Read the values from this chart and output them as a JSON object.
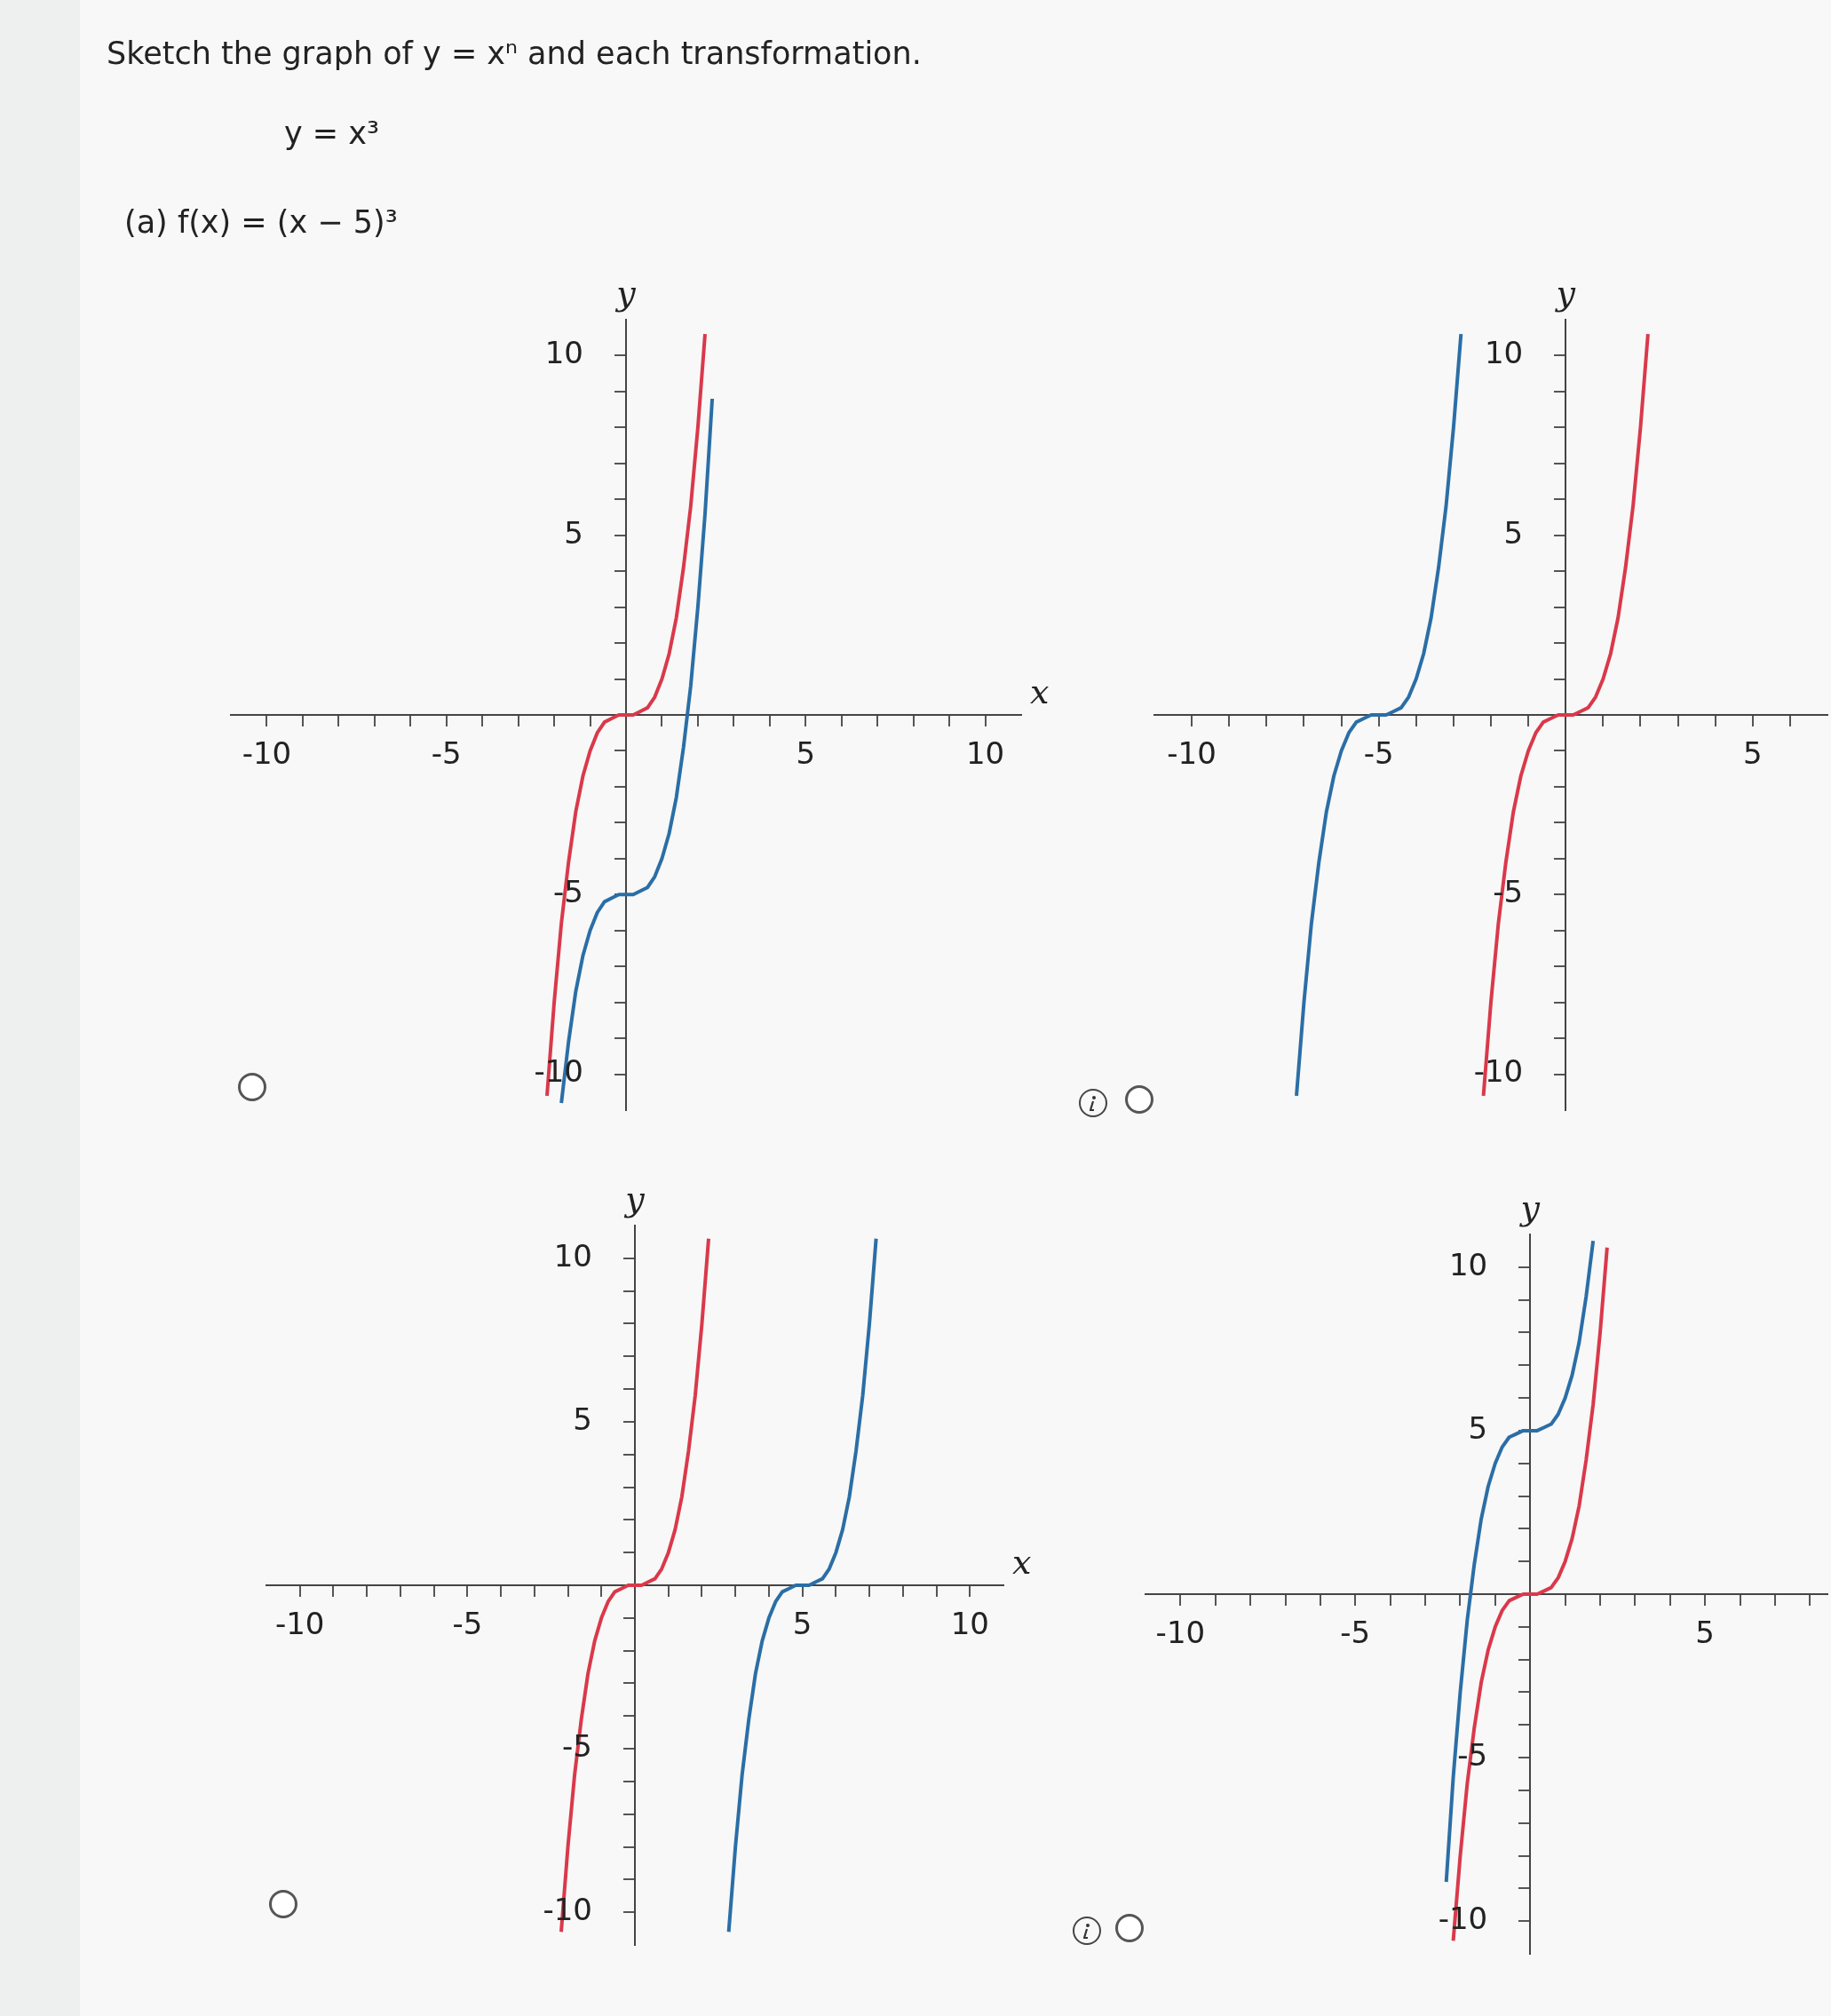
{
  "chart_data": [
    {
      "type": "line",
      "title": "Sketch the graph of y = xⁿ and each transformation.",
      "subtitle": "y = x³",
      "annotations": [
        "(a) f(x) = (x − 5)³"
      ],
      "xlabel": "x",
      "ylabel": "y",
      "xlim": [
        -11,
        11
      ],
      "ylim": [
        -11,
        11
      ],
      "xticks": [
        -10,
        {
          "value": -9,
          "label": null
        },
        {
          "value": -8,
          "label": null
        },
        {
          "value": -7,
          "label": null
        },
        {
          "value": -6,
          "label": null
        },
        -5,
        {
          "value": -4,
          "label": null
        },
        {
          "value": -3,
          "label": null
        },
        {
          "value": -2,
          "label": null
        },
        {
          "value": -1,
          "label": null
        },
        {
          "value": 1,
          "label": null
        },
        {
          "value": 2,
          "label": null
        },
        {
          "value": 3,
          "label": null
        },
        {
          "value": 4,
          "label": null
        },
        5,
        {
          "value": 6,
          "label": null
        },
        {
          "value": 7,
          "label": null
        },
        {
          "value": 8,
          "label": null
        },
        {
          "value": 9,
          "label": null
        },
        10
      ],
      "yticks": [
        -10,
        {
          "value": -9,
          "label": null
        },
        {
          "value": -8,
          "label": null
        },
        {
          "value": -7,
          "label": null
        },
        {
          "value": -6,
          "label": null
        },
        -5,
        {
          "value": -4,
          "label": null
        },
        {
          "value": -3,
          "label": null
        },
        {
          "value": -2,
          "label": null
        },
        {
          "value": -1,
          "label": null
        },
        {
          "value": 1,
          "label": null
        },
        {
          "value": 2,
          "label": null
        },
        {
          "value": 3,
          "label": null
        },
        {
          "value": 4,
          "label": null
        },
        5,
        {
          "value": 6,
          "label": null
        },
        {
          "value": 7,
          "label": null
        },
        {
          "value": 8,
          "label": null
        },
        {
          "value": 9,
          "label": null
        },
        10
      ],
      "grid": false,
      "legend": false,
      "series": [
        {
          "color": "#d9394b",
          "x": [
            -2.2,
            -2,
            -1.8,
            -1.6,
            -1.4,
            -1.2,
            -1,
            -0.8,
            -0.6,
            -0.4,
            -0.2,
            0,
            0.2,
            0.4,
            0.6,
            0.8,
            1,
            1.2,
            1.4,
            1.6,
            1.8,
            2,
            2.2
          ],
          "values": [
            -10.6,
            -8,
            -5.8,
            -4.1,
            -2.7,
            -1.7,
            -1,
            -0.5,
            -0.2,
            -0.1,
            0,
            0,
            0,
            0.1,
            0.2,
            0.5,
            1,
            1.7,
            2.7,
            4.1,
            5.8,
            8,
            10.6
          ]
        },
        {
          "color": "#2b6ea6",
          "x": [
            -1.8,
            -1.6,
            -1.4,
            -1.2,
            -1,
            -0.8,
            -0.6,
            -0.4,
            -0.2,
            0,
            0.2,
            0.4,
            0.6,
            0.8,
            1,
            1.2,
            1.4,
            1.6,
            1.8,
            2,
            2.2,
            2.4
          ],
          "values": [
            -10.8,
            -9.1,
            -7.7,
            -6.7,
            -6,
            -5.5,
            -5.2,
            -5.1,
            -5,
            -5,
            -5,
            -4.9,
            -4.8,
            -4.5,
            -4,
            -3.3,
            -2.3,
            -0.9,
            0.8,
            3,
            5.6,
            8.8
          ]
        }
      ]
    },
    {
      "type": "line",
      "ylabel": "y",
      "xlim": [
        -11,
        7
      ],
      "ylim": [
        -11,
        11
      ],
      "xticks": [
        -10,
        {
          "value": -9,
          "label": null
        },
        {
          "value": -8,
          "label": null
        },
        {
          "value": -7,
          "label": null
        },
        {
          "value": -6,
          "label": null
        },
        -5,
        {
          "value": -4,
          "label": null
        },
        {
          "value": -3,
          "label": null
        },
        {
          "value": -2,
          "label": null
        },
        {
          "value": -1,
          "label": null
        },
        {
          "value": 1,
          "label": null
        },
        {
          "value": 2,
          "label": null
        },
        {
          "value": 3,
          "label": null
        },
        {
          "value": 4,
          "label": null
        },
        5,
        {
          "value": 6,
          "label": null
        }
      ],
      "yticks": [
        -10,
        {
          "value": -9,
          "label": null
        },
        {
          "value": -8,
          "label": null
        },
        {
          "value": -7,
          "label": null
        },
        {
          "value": -6,
          "label": null
        },
        -5,
        {
          "value": -4,
          "label": null
        },
        {
          "value": -3,
          "label": null
        },
        {
          "value": -2,
          "label": null
        },
        {
          "value": -1,
          "label": null
        },
        {
          "value": 1,
          "label": null
        },
        {
          "value": 2,
          "label": null
        },
        {
          "value": 3,
          "label": null
        },
        {
          "value": 4,
          "label": null
        },
        5,
        {
          "value": 6,
          "label": null
        },
        {
          "value": 7,
          "label": null
        },
        {
          "value": 8,
          "label": null
        },
        {
          "value": 9,
          "label": null
        },
        10
      ],
      "grid": false,
      "legend": false,
      "series": [
        {
          "color": "#d9394b",
          "x": [
            -2.2,
            -2,
            -1.8,
            -1.6,
            -1.4,
            -1.2,
            -1,
            -0.8,
            -0.6,
            -0.4,
            -0.2,
            0,
            0.2,
            0.4,
            0.6,
            0.8,
            1,
            1.2,
            1.4,
            1.6,
            1.8,
            2,
            2.2
          ],
          "values": [
            -10.6,
            -8,
            -5.8,
            -4.1,
            -2.7,
            -1.7,
            -1,
            -0.5,
            -0.2,
            -0.1,
            0,
            0,
            0,
            0.1,
            0.2,
            0.5,
            1,
            1.7,
            2.7,
            4.1,
            5.8,
            8,
            10.6
          ]
        },
        {
          "color": "#2b6ea6",
          "x": [
            -7.2,
            -7,
            -6.8,
            -6.6,
            -6.4,
            -6.2,
            -6,
            -5.8,
            -5.6,
            -5.4,
            -5.2,
            -5,
            -4.8,
            -4.6,
            -4.4,
            -4.2,
            -4,
            -3.8,
            -3.6,
            -3.4,
            -3.2,
            -3,
            -2.8
          ],
          "values": [
            -10.6,
            -8,
            -5.8,
            -4.1,
            -2.7,
            -1.7,
            -1,
            -0.5,
            -0.2,
            -0.1,
            0,
            0,
            0,
            0.1,
            0.2,
            0.5,
            1,
            1.7,
            2.7,
            4.1,
            5.8,
            8,
            10.6
          ]
        }
      ]
    },
    {
      "type": "line",
      "xlabel": "x",
      "ylabel": "y",
      "xlim": [
        -11,
        11
      ],
      "ylim": [
        -11,
        11
      ],
      "xticks": [
        -10,
        {
          "value": -9,
          "label": null
        },
        {
          "value": -8,
          "label": null
        },
        {
          "value": -7,
          "label": null
        },
        {
          "value": -6,
          "label": null
        },
        -5,
        {
          "value": -4,
          "label": null
        },
        {
          "value": -3,
          "label": null
        },
        {
          "value": -2,
          "label": null
        },
        {
          "value": -1,
          "label": null
        },
        {
          "value": 1,
          "label": null
        },
        {
          "value": 2,
          "label": null
        },
        {
          "value": 3,
          "label": null
        },
        {
          "value": 4,
          "label": null
        },
        5,
        {
          "value": 6,
          "label": null
        },
        {
          "value": 7,
          "label": null
        },
        {
          "value": 8,
          "label": null
        },
        {
          "value": 9,
          "label": null
        },
        10
      ],
      "yticks": [
        -10,
        {
          "value": -9,
          "label": null
        },
        {
          "value": -8,
          "label": null
        },
        {
          "value": -7,
          "label": null
        },
        {
          "value": -6,
          "label": null
        },
        -5,
        {
          "value": -4,
          "label": null
        },
        {
          "value": -3,
          "label": null
        },
        {
          "value": -2,
          "label": null
        },
        {
          "value": -1,
          "label": null
        },
        {
          "value": 1,
          "label": null
        },
        {
          "value": 2,
          "label": null
        },
        {
          "value": 3,
          "label": null
        },
        {
          "value": 4,
          "label": null
        },
        5,
        {
          "value": 6,
          "label": null
        },
        {
          "value": 7,
          "label": null
        },
        {
          "value": 8,
          "label": null
        },
        {
          "value": 9,
          "label": null
        },
        10
      ],
      "grid": false,
      "legend": false,
      "series": [
        {
          "color": "#d9394b",
          "x": [
            -2.2,
            -2,
            -1.8,
            -1.6,
            -1.4,
            -1.2,
            -1,
            -0.8,
            -0.6,
            -0.4,
            -0.2,
            0,
            0.2,
            0.4,
            0.6,
            0.8,
            1,
            1.2,
            1.4,
            1.6,
            1.8,
            2,
            2.2
          ],
          "values": [
            -10.6,
            -8,
            -5.8,
            -4.1,
            -2.7,
            -1.7,
            -1,
            -0.5,
            -0.2,
            -0.1,
            0,
            0,
            0,
            0.1,
            0.2,
            0.5,
            1,
            1.7,
            2.7,
            4.1,
            5.8,
            8,
            10.6
          ]
        },
        {
          "color": "#2b6ea6",
          "x": [
            2.8,
            3,
            3.2,
            3.4,
            3.6,
            3.8,
            4,
            4.2,
            4.4,
            4.6,
            4.8,
            5,
            5.2,
            5.4,
            5.6,
            5.8,
            6,
            6.2,
            6.4,
            6.6,
            6.8,
            7,
            7.2
          ],
          "values": [
            -10.6,
            -8,
            -5.8,
            -4.1,
            -2.7,
            -1.7,
            -1,
            -0.5,
            -0.2,
            -0.1,
            0,
            0,
            0,
            0.1,
            0.2,
            0.5,
            1,
            1.7,
            2.7,
            4.1,
            5.8,
            8,
            10.6
          ]
        }
      ]
    },
    {
      "type": "line",
      "ylabel": "y",
      "xlim": [
        -11,
        8.5
      ],
      "ylim": [
        -11,
        11
      ],
      "xticks": [
        -10,
        {
          "value": -9,
          "label": null
        },
        {
          "value": -8,
          "label": null
        },
        {
          "value": -7,
          "label": null
        },
        {
          "value": -6,
          "label": null
        },
        -5,
        {
          "value": -4,
          "label": null
        },
        {
          "value": -3,
          "label": null
        },
        {
          "value": -2,
          "label": null
        },
        {
          "value": -1,
          "label": null
        },
        {
          "value": 1,
          "label": null
        },
        {
          "value": 2,
          "label": null
        },
        {
          "value": 3,
          "label": null
        },
        {
          "value": 4,
          "label": null
        },
        5,
        {
          "value": 6,
          "label": null
        },
        {
          "value": 7,
          "label": null
        },
        {
          "value": 8,
          "label": null
        }
      ],
      "yticks": [
        -10,
        {
          "value": -9,
          "label": null
        },
        {
          "value": -8,
          "label": null
        },
        {
          "value": -7,
          "label": null
        },
        {
          "value": -6,
          "label": null
        },
        -5,
        {
          "value": -4,
          "label": null
        },
        {
          "value": -3,
          "label": null
        },
        {
          "value": -2,
          "label": null
        },
        {
          "value": -1,
          "label": null
        },
        {
          "value": 1,
          "label": null
        },
        {
          "value": 2,
          "label": null
        },
        {
          "value": 3,
          "label": null
        },
        {
          "value": 4,
          "label": null
        },
        5,
        {
          "value": 6,
          "label": null
        },
        {
          "value": 7,
          "label": null
        },
        {
          "value": 8,
          "label": null
        },
        {
          "value": 9,
          "label": null
        },
        10
      ],
      "grid": false,
      "legend": false,
      "series": [
        {
          "color": "#d9394b",
          "x": [
            -2.2,
            -2,
            -1.8,
            -1.6,
            -1.4,
            -1.2,
            -1,
            -0.8,
            -0.6,
            -0.4,
            -0.2,
            0,
            0.2,
            0.4,
            0.6,
            0.8,
            1,
            1.2,
            1.4,
            1.6,
            1.8,
            2,
            2.2
          ],
          "values": [
            -10.6,
            -8,
            -5.8,
            -4.1,
            -2.7,
            -1.7,
            -1,
            -0.5,
            -0.2,
            -0.1,
            0,
            0,
            0,
            0.1,
            0.2,
            0.5,
            1,
            1.7,
            2.7,
            4.1,
            5.8,
            8,
            10.6
          ]
        },
        {
          "color": "#2b6ea6",
          "x": [
            -2.4,
            -2.2,
            -2,
            -1.8,
            -1.6,
            -1.4,
            -1.2,
            -1,
            -0.8,
            -0.6,
            -0.4,
            -0.2,
            0,
            0.2,
            0.4,
            0.6,
            0.8,
            1,
            1.2,
            1.4,
            1.6,
            1.8
          ],
          "values": [
            -8.8,
            -5.6,
            -3,
            -0.8,
            0.9,
            2.3,
            3.3,
            4,
            4.5,
            4.8,
            4.9,
            5,
            5,
            5,
            5.1,
            5.2,
            5.5,
            6,
            6.7,
            7.7,
            9.1,
            10.8
          ]
        }
      ]
    }
  ]
}
